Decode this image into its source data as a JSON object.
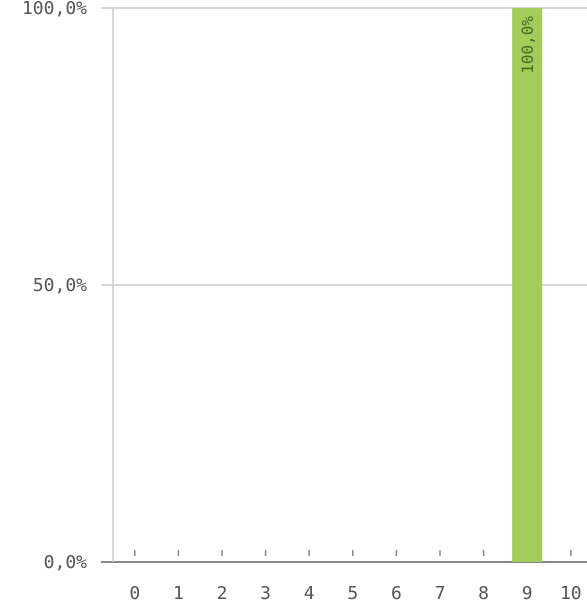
{
  "chart_data": {
    "type": "bar",
    "categories": [
      "0",
      "1",
      "2",
      "3",
      "4",
      "5",
      "6",
      "7",
      "8",
      "9",
      "10"
    ],
    "values": [
      0,
      0,
      0,
      0,
      0,
      0,
      0,
      0,
      0,
      100,
      0
    ],
    "data_labels": [
      "",
      "",
      "",
      "",
      "",
      "",
      "",
      "",
      "",
      "100,0%",
      ""
    ],
    "y_ticks": [
      {
        "value": 0,
        "label": "0,0%"
      },
      {
        "value": 50,
        "label": "50,0%"
      },
      {
        "value": 100,
        "label": "100,0%"
      }
    ],
    "ylim": [
      0,
      100
    ],
    "title": "",
    "xlabel": "",
    "ylabel": "",
    "grid": true,
    "legend": "none",
    "colors": {
      "bar": "#a3cc5a",
      "grid": "#cccccc",
      "axis": "#888888",
      "label": "#555555",
      "data_label": "#4a6a2a"
    }
  }
}
